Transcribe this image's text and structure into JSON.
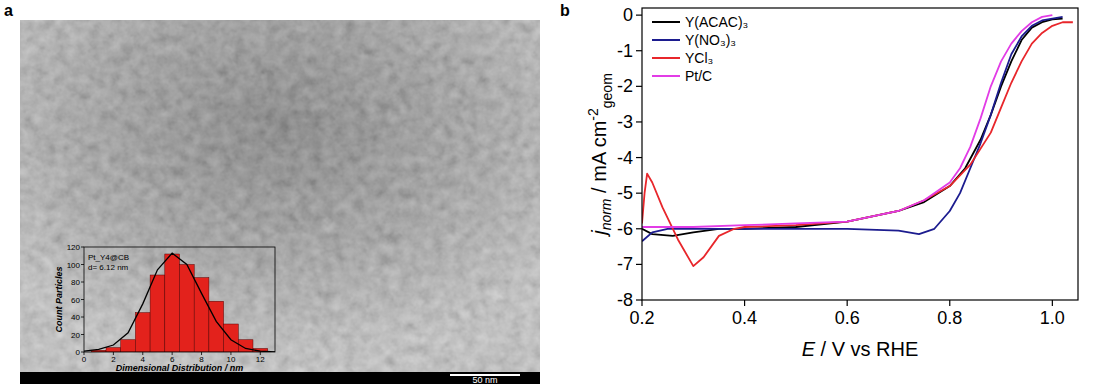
{
  "image": {
    "panel_label": "a",
    "scale_bar": "50 nm"
  },
  "chart_data": [
    {
      "type": "histogram",
      "xlabel": "Dimensional Distribution / nm",
      "ylabel": "Count Particles",
      "annotations": [
        "Pt_Y4@CB",
        "d= 6.12 nm"
      ],
      "bins": [
        0.5,
        1.5,
        2.5,
        3.5,
        4.5,
        5.5,
        6.5,
        7.5,
        8.5,
        9.5,
        10.5,
        11.5,
        12.5
      ],
      "values": [
        2,
        5,
        14,
        45,
        88,
        112,
        100,
        85,
        58,
        32,
        14,
        4
      ],
      "color": "#e3221c",
      "curve": {
        "x": [
          0,
          1,
          2,
          3,
          4,
          5,
          6,
          7,
          8,
          9,
          10,
          11,
          12,
          13
        ],
        "values": [
          1,
          3,
          8,
          22,
          55,
          94,
          113,
          100,
          67,
          35,
          14,
          4,
          1,
          0
        ],
        "color": "#000000"
      },
      "xlim": [
        0,
        13
      ],
      "ylim": [
        0,
        120
      ],
      "xticks": [
        0,
        2,
        4,
        6,
        8,
        10,
        12
      ],
      "yticks": [
        0,
        20,
        40,
        60,
        80,
        100,
        120
      ]
    },
    {
      "type": "line",
      "panel_label": "b",
      "xlabel": [
        "E",
        " / V vs RHE"
      ],
      "ylabel": [
        "j",
        "norm",
        " / mA cm",
        "-2",
        "geom"
      ],
      "legend": "upper-left",
      "xlim": [
        0.2,
        1.05
      ],
      "ylim": [
        -8,
        0.2
      ],
      "xticks": [
        0.2,
        0.4,
        0.6,
        0.8,
        {
          "value": 1,
          "label": "1.0"
        }
      ],
      "yticks": [
        -8,
        -7,
        -6,
        -5,
        -4,
        -3,
        -2,
        -1,
        0
      ],
      "series": [
        {
          "name": "Y(ACAC)₃",
          "color": "#000000",
          "x": [
            0.2,
            0.22,
            0.26,
            0.3,
            0.35,
            0.4,
            0.5,
            0.6,
            0.7,
            0.75,
            0.8,
            0.83,
            0.86,
            0.88,
            0.9,
            0.92,
            0.94,
            0.96,
            0.98,
            1.0,
            1.02
          ],
          "values": [
            -6.0,
            -6.15,
            -6.2,
            -6.1,
            -6.0,
            -6.0,
            -5.95,
            -5.8,
            -5.5,
            -5.25,
            -4.8,
            -4.3,
            -3.5,
            -2.8,
            -2.0,
            -1.3,
            -0.7,
            -0.35,
            -0.2,
            -0.12,
            -0.1
          ]
        },
        {
          "name": "Y(NO₃)₃",
          "color": "#1c1c8f",
          "x": [
            0.2,
            0.22,
            0.25,
            0.3,
            0.4,
            0.5,
            0.6,
            0.7,
            0.74,
            0.77,
            0.8,
            0.82,
            0.84,
            0.86,
            0.88,
            0.9,
            0.92,
            0.94,
            0.96,
            0.98,
            1.0,
            1.02
          ],
          "values": [
            -6.35,
            -6.1,
            -6.0,
            -6.0,
            -6.0,
            -6.0,
            -6.0,
            -6.05,
            -6.15,
            -6.0,
            -5.5,
            -5.0,
            -4.3,
            -3.6,
            -2.8,
            -1.9,
            -1.1,
            -0.6,
            -0.3,
            -0.15,
            -0.1,
            -0.05
          ]
        },
        {
          "name": "YCl₃",
          "color": "#e8262b",
          "x": [
            0.2,
            0.205,
            0.21,
            0.22,
            0.24,
            0.27,
            0.3,
            0.32,
            0.35,
            0.38,
            0.4,
            0.5,
            0.6,
            0.7,
            0.75,
            0.8,
            0.84,
            0.88,
            0.9,
            0.92,
            0.94,
            0.96,
            0.98,
            1.0,
            1.02,
            1.04
          ],
          "values": [
            -5.85,
            -5.0,
            -4.45,
            -4.7,
            -5.4,
            -6.3,
            -7.05,
            -6.8,
            -6.2,
            -6.0,
            -5.95,
            -5.9,
            -5.8,
            -5.5,
            -5.2,
            -4.8,
            -4.2,
            -3.3,
            -2.6,
            -1.9,
            -1.3,
            -0.8,
            -0.5,
            -0.3,
            -0.2,
            -0.2
          ]
        },
        {
          "name": "Pt/C",
          "color": "#e23ce6",
          "x": [
            0.2,
            0.3,
            0.4,
            0.5,
            0.6,
            0.7,
            0.75,
            0.8,
            0.82,
            0.84,
            0.86,
            0.88,
            0.9,
            0.92,
            0.94,
            0.96,
            0.98,
            1.0
          ],
          "values": [
            -5.95,
            -5.95,
            -5.9,
            -5.85,
            -5.8,
            -5.5,
            -5.2,
            -4.7,
            -4.3,
            -3.7,
            -2.9,
            -2.0,
            -1.3,
            -0.8,
            -0.45,
            -0.2,
            -0.05,
            0.0
          ]
        }
      ]
    }
  ]
}
